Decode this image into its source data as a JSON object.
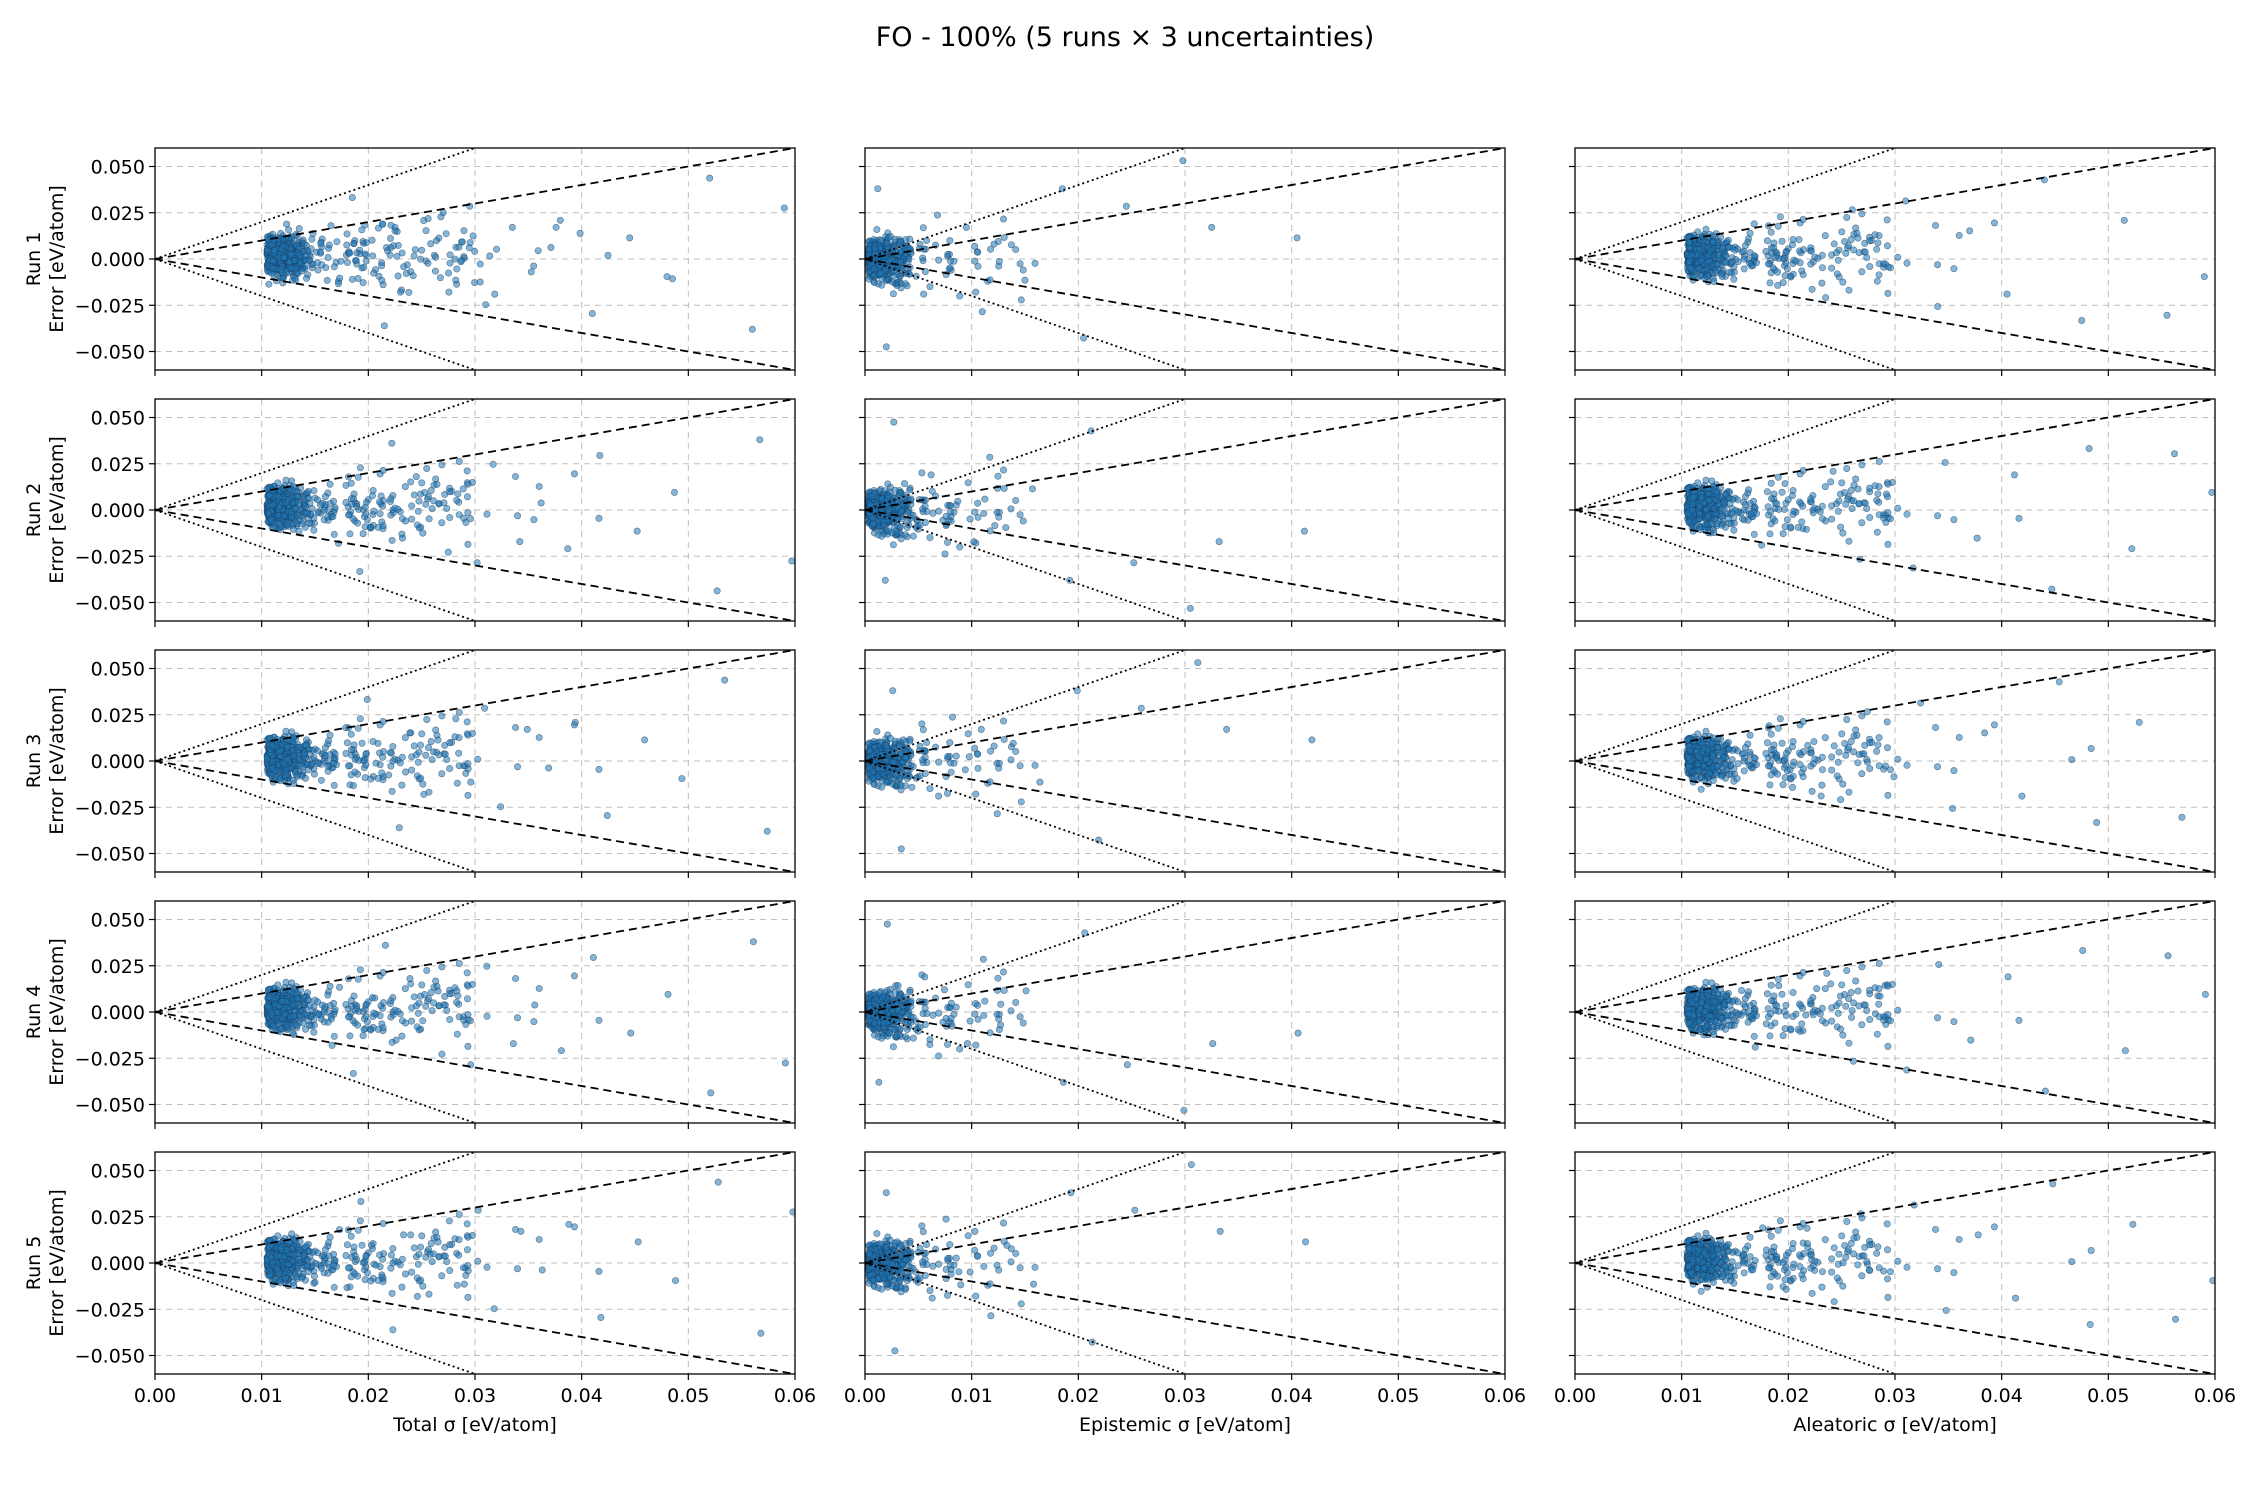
{
  "title": "FO - 100% (5 runs × 3 uncertainties)",
  "chart_data": {
    "type": "scatter",
    "grid": true,
    "rows": [
      {
        "label": "Run 1",
        "ylabel": "Error [eV/atom]"
      },
      {
        "label": "Run 2",
        "ylabel": "Error [eV/atom]"
      },
      {
        "label": "Run 3",
        "ylabel": "Error [eV/atom]"
      },
      {
        "label": "Run 4",
        "ylabel": "Error [eV/atom]"
      },
      {
        "label": "Run 5",
        "ylabel": "Error [eV/atom]"
      }
    ],
    "columns": [
      {
        "xlabel": "Total σ [eV/atom]",
        "kind": "total"
      },
      {
        "xlabel": "Epistemic σ [eV/atom]",
        "kind": "epistemic"
      },
      {
        "xlabel": "Aleatoric σ [eV/atom]",
        "kind": "aleatoric"
      }
    ],
    "xlim": [
      0,
      0.06
    ],
    "ylim": [
      -0.06,
      0.06
    ],
    "xticks": [
      "0.00",
      "0.01",
      "0.02",
      "0.03",
      "0.04",
      "0.05",
      "0.06"
    ],
    "yticks": [
      "0.050",
      "0.025",
      "0.000",
      "−0.025",
      "−0.050"
    ],
    "ytick_values": [
      0.05,
      0.025,
      0.0,
      -0.025,
      -0.05
    ],
    "reference_lines": [
      {
        "style": "dashed",
        "slope": 1
      },
      {
        "style": "dashed",
        "slope": -1
      },
      {
        "style": "dotted",
        "slope": 2
      },
      {
        "style": "dotted",
        "slope": -2
      }
    ],
    "marker_color": "#1f77b4",
    "marker_edge_color": "#1b3a5c",
    "scatter": {
      "total": {
        "center": [
          0.012,
          0.014,
          0.013,
          0.013,
          0.012
        ],
        "samples": [
          [
            0.0135,
            0.002
          ],
          [
            0.0142,
            -0.011
          ],
          [
            0.0128,
            0.012
          ],
          [
            0.0155,
            0.004
          ],
          [
            0.0118,
            -0.006
          ],
          [
            0.0165,
            0.019
          ],
          [
            0.011,
            0.008
          ],
          [
            0.0148,
            -0.003
          ],
          [
            0.0172,
            -0.014
          ],
          [
            0.0121,
            0.001
          ],
          [
            0.0195,
            0.01
          ],
          [
            0.0205,
            -0.008
          ],
          [
            0.0225,
            0.016
          ],
          [
            0.0238,
            -0.019
          ],
          [
            0.025,
            0.005
          ],
          [
            0.0268,
            0.024
          ],
          [
            0.0282,
            -0.012
          ],
          [
            0.0295,
            0.03
          ],
          [
            0.031,
            -0.026
          ],
          [
            0.0335,
            0.018
          ],
          [
            0.0355,
            -0.004
          ],
          [
            0.038,
            0.022
          ],
          [
            0.041,
            -0.031
          ],
          [
            0.0445,
            0.012
          ],
          [
            0.048,
            -0.01
          ],
          [
            0.052,
            0.046
          ],
          [
            0.056,
            -0.04
          ],
          [
            0.059,
            0.029
          ],
          [
            0.0185,
            0.035
          ],
          [
            0.0215,
            -0.038
          ]
        ]
      },
      "epistemic": {
        "samples": [
          [
            0.001,
            0.003
          ],
          [
            0.0015,
            -0.008
          ],
          [
            0.0022,
            0.012
          ],
          [
            0.003,
            -0.015
          ],
          [
            0.0042,
            0.006
          ],
          [
            0.0055,
            -0.02
          ],
          [
            0.0068,
            0.025
          ],
          [
            0.008,
            -0.005
          ],
          [
            0.0095,
            0.018
          ],
          [
            0.011,
            -0.03
          ],
          [
            0.0125,
            0.01
          ],
          [
            0.015,
            -0.012
          ],
          [
            0.0185,
            0.04
          ],
          [
            0.0205,
            -0.045
          ],
          [
            0.0245,
            0.03
          ],
          [
            0.0298,
            0.056
          ],
          [
            0.0325,
            0.018
          ],
          [
            0.0405,
            0.012
          ],
          [
            0.0012,
            0.04
          ],
          [
            0.002,
            -0.05
          ]
        ]
      },
      "aleatoric": {
        "samples": [
          [
            0.0125,
            0.002
          ],
          [
            0.0138,
            -0.01
          ],
          [
            0.012,
            0.013
          ],
          [
            0.015,
            0.005
          ],
          [
            0.0112,
            -0.007
          ],
          [
            0.0168,
            0.02
          ],
          [
            0.019,
            -0.015
          ],
          [
            0.021,
            0.011
          ],
          [
            0.0235,
            -0.022
          ],
          [
            0.026,
            0.028
          ],
          [
            0.0285,
            -0.009
          ],
          [
            0.031,
            0.033
          ],
          [
            0.034,
            -0.027
          ],
          [
            0.037,
            0.016
          ],
          [
            0.0405,
            -0.02
          ],
          [
            0.044,
            0.045
          ],
          [
            0.0475,
            -0.035
          ],
          [
            0.0515,
            0.022
          ],
          [
            0.0555,
            -0.032
          ],
          [
            0.059,
            -0.01
          ]
        ]
      }
    }
  }
}
